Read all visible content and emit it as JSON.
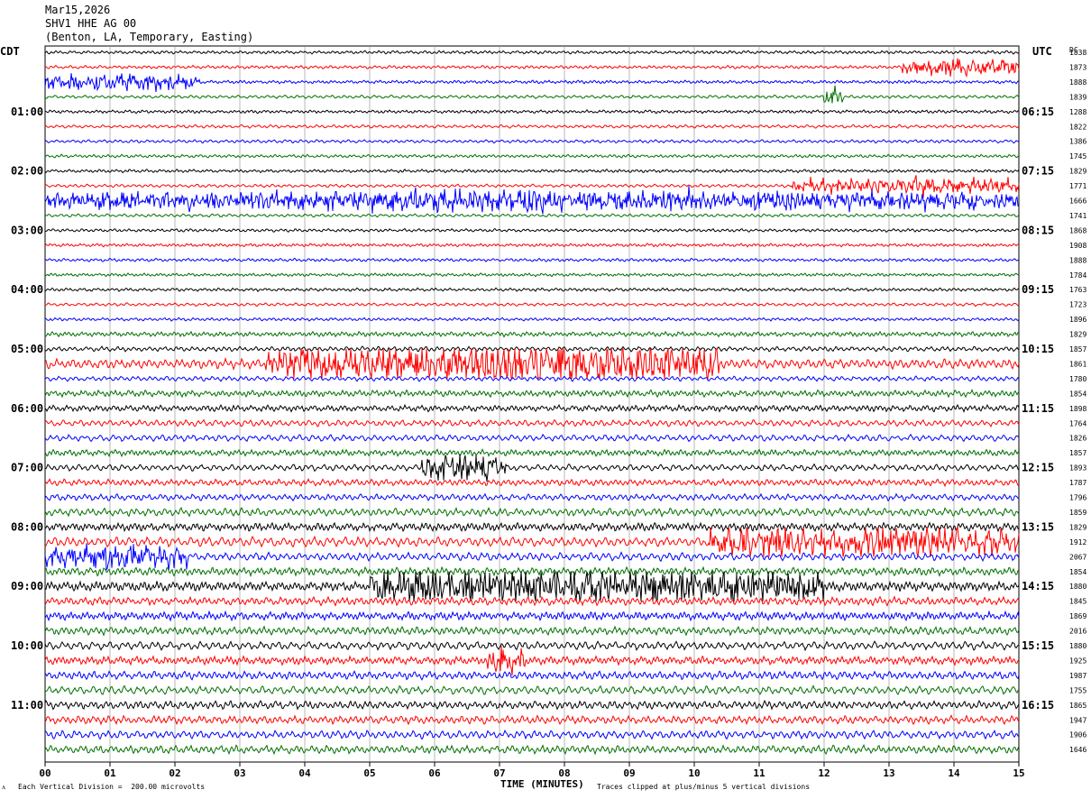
{
  "header": {
    "date": "Mar15,2026",
    "station": "SHV1 HHE AG 00",
    "location": "(Benton, LA, Temporary, Easting)"
  },
  "left_tz": "CDT",
  "right_tz": "UTC",
  "dc_label": "DC",
  "footer": {
    "scale": "Each Vertical Division =  200.00 microvolts",
    "clip": "Traces clipped at plus/minus 5 vertical divisions",
    "mark": "ᴧ"
  },
  "colors": [
    "#000000",
    "#ff0000",
    "#0000ff",
    "#007000"
  ],
  "chart_data": {
    "type": "line",
    "title": "",
    "xlabel": "TIME (MINUTES)",
    "ylabel": "",
    "xlim": [
      0,
      15
    ],
    "x_ticks": [
      "00",
      "01",
      "02",
      "03",
      "04",
      "05",
      "06",
      "07",
      "08",
      "09",
      "10",
      "11",
      "12",
      "13",
      "14",
      "15"
    ],
    "left_time_labels": [
      "01:00",
      "02:00",
      "03:00",
      "04:00",
      "05:00",
      "06:00",
      "07:00",
      "08:00",
      "09:00",
      "10:00",
      "11:00"
    ],
    "right_time_labels": [
      "06:15",
      "07:15",
      "08:15",
      "09:15",
      "10:15",
      "11:15",
      "12:15",
      "13:15",
      "14:15",
      "15:15",
      "16:15"
    ],
    "dc_offsets": [
      "1838",
      "1873",
      "1888",
      "1839",
      "1288",
      "1822",
      "1386",
      "1745",
      "1829",
      "1771",
      "1666",
      "1741",
      "1868",
      "1908",
      "1888",
      "1784",
      "1763",
      "1723",
      "1896",
      "1829",
      "1857",
      "1861",
      "1780",
      "1854",
      "1898",
      "1764",
      "1826",
      "1857",
      "1893",
      "1787",
      "1796",
      "1859",
      "1829",
      "1912",
      "2067",
      "1854",
      "1880",
      "1845",
      "1869",
      "2016",
      "1880",
      "1925",
      "1987",
      "1755",
      "1865",
      "1947",
      "1906",
      "1646"
    ],
    "trace_activity": [
      1,
      1,
      1,
      1,
      1,
      1,
      1,
      1,
      1,
      1,
      2,
      1,
      1,
      1,
      1,
      1,
      1,
      1,
      1,
      1.5,
      1.5,
      3,
      1.5,
      2,
      2,
      2,
      2,
      2,
      2,
      2,
      2,
      2.5,
      2.5,
      3,
      2.5,
      2.5,
      3,
      2.5,
      2.5,
      2.5,
      2.5,
      2.5,
      2.5,
      2.5,
      2.5,
      2.5,
      2.5,
      2.5
    ],
    "events": [
      {
        "trace": 1,
        "start_min": 13.2,
        "end_min": 15,
        "amp": 2.0
      },
      {
        "trace": 2,
        "start_min": 0,
        "end_min": 2.4,
        "amp": 2.2
      },
      {
        "trace": 3,
        "start_min": 12.0,
        "end_min": 12.3,
        "amp": 3.0
      },
      {
        "trace": 9,
        "start_min": 11.5,
        "end_min": 15,
        "amp": 2.0
      },
      {
        "trace": 10,
        "start_min": 0,
        "end_min": 15,
        "amp": 2.0
      },
      {
        "trace": 21,
        "start_min": 3.4,
        "end_min": 10.4,
        "amp": 5.0
      },
      {
        "trace": 28,
        "start_min": 5.8,
        "end_min": 7.1,
        "amp": 3.0
      },
      {
        "trace": 33,
        "start_min": 10.2,
        "end_min": 15,
        "amp": 3.0
      },
      {
        "trace": 34,
        "start_min": 0,
        "end_min": 2.2,
        "amp": 2.0
      },
      {
        "trace": 36,
        "start_min": 5.0,
        "end_min": 12.0,
        "amp": 4.0
      },
      {
        "trace": 41,
        "start_min": 6.8,
        "end_min": 7.4,
        "amp": 3.0
      }
    ]
  }
}
